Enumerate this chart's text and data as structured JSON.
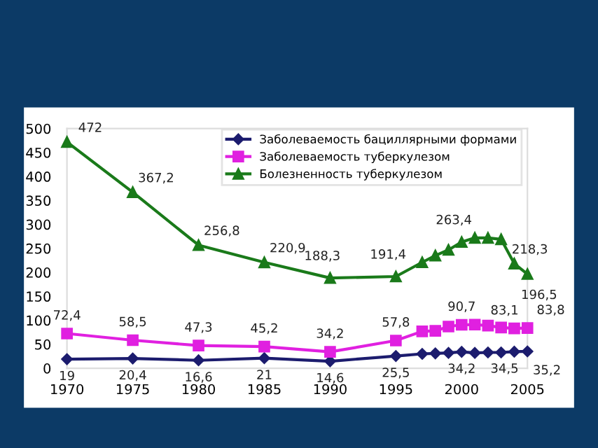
{
  "chart_data": {
    "type": "line",
    "x": [
      1970,
      1975,
      1980,
      1985,
      1990,
      1995,
      1997,
      1998,
      1999,
      2000,
      2001,
      2002,
      2003,
      2004,
      2005
    ],
    "xlim": [
      1970,
      2005
    ],
    "xticks": [
      1970,
      1975,
      1980,
      1985,
      1990,
      1995,
      2000,
      2005
    ],
    "ylim": [
      0,
      500
    ],
    "yticks": [
      0,
      50,
      100,
      150,
      200,
      250,
      300,
      350,
      400,
      450,
      500
    ],
    "grid": false,
    "legend": "top right",
    "series": [
      {
        "name": "Заболеваемость бациллярными формами",
        "color": "#1c1c6e",
        "marker": "diamond",
        "values": [
          19,
          20.4,
          16.6,
          21,
          14.6,
          25.5,
          30,
          31,
          32,
          34.2,
          32,
          33,
          33,
          34.5,
          35.2
        ],
        "value_labels": [
          "19",
          "20,4",
          "16,6",
          "21",
          "14,6",
          "25,5",
          null,
          null,
          null,
          "34,2",
          null,
          null,
          null,
          "34,5",
          "35,2"
        ]
      },
      {
        "name": "Заболеваемость туберкулезом",
        "color": "#e020e0",
        "marker": "square",
        "values": [
          72.4,
          58.5,
          47.3,
          45.2,
          34.2,
          57.8,
          77,
          78,
          87,
          90.7,
          91,
          89,
          85,
          83.1,
          83.8
        ],
        "value_labels": [
          "72,4",
          "58,5",
          "47,3",
          "45,2",
          "34,2",
          "57,8",
          null,
          null,
          null,
          "90,7",
          null,
          null,
          null,
          "83,1",
          "83,8"
        ]
      },
      {
        "name": "Болезненность туберкулезом",
        "color": "#1a7a1a",
        "marker": "triangle",
        "values": [
          472,
          367.2,
          256.8,
          220.9,
          188.3,
          191.4,
          221,
          235,
          247,
          263.4,
          272,
          272,
          269,
          218.3,
          196.5
        ],
        "value_labels": [
          "472",
          "367,2",
          "256,8",
          "220,9",
          "188,3",
          "191,4",
          null,
          null,
          null,
          "263,4",
          null,
          null,
          null,
          "218,3",
          "196,5"
        ]
      }
    ]
  }
}
